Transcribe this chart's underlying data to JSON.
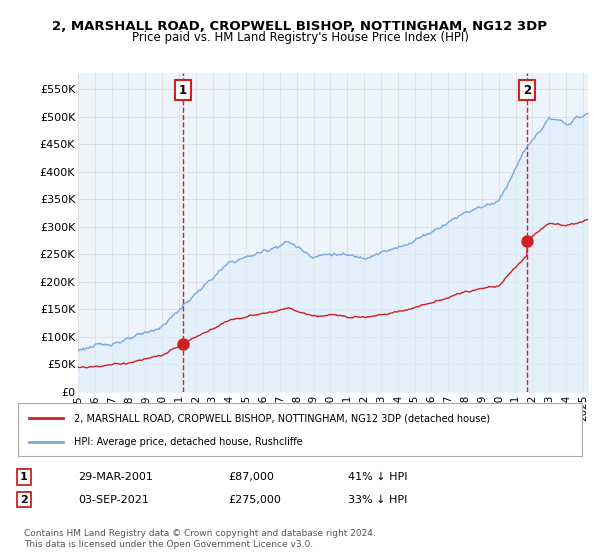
{
  "title": "2, MARSHALL ROAD, CROPWELL BISHOP, NOTTINGHAM, NG12 3DP",
  "subtitle": "Price paid vs. HM Land Registry's House Price Index (HPI)",
  "ylabel_ticks": [
    "£0",
    "£50K",
    "£100K",
    "£150K",
    "£200K",
    "£250K",
    "£300K",
    "£350K",
    "£400K",
    "£450K",
    "£500K",
    "£550K"
  ],
  "ytick_values": [
    0,
    50000,
    100000,
    150000,
    200000,
    250000,
    300000,
    350000,
    400000,
    450000,
    500000,
    550000
  ],
  "ylim": [
    0,
    580000
  ],
  "xlim_start": 1995.0,
  "xlim_end": 2025.3,
  "hpi_color": "#7aaadd",
  "price_color": "#cc2222",
  "sale1_date": 2001.24,
  "sale1_price": 87000,
  "sale2_date": 2021.67,
  "sale2_price": 275000,
  "legend_line1": "2, MARSHALL ROAD, CROPWELL BISHOP, NOTTINGHAM, NG12 3DP (detached house)",
  "legend_line2": "HPI: Average price, detached house, Rushcliffe",
  "annotation1_label": "1",
  "annotation1_date": "29-MAR-2001",
  "annotation1_price": "£87,000",
  "annotation1_hpi": "41% ↓ HPI",
  "annotation2_label": "2",
  "annotation2_date": "03-SEP-2021",
  "annotation2_price": "£275,000",
  "annotation2_hpi": "33% ↓ HPI",
  "footer": "Contains HM Land Registry data © Crown copyright and database right 2024.\nThis data is licensed under the Open Government Licence v3.0.",
  "bg_color": "#ffffff",
  "grid_color": "#dddddd",
  "hpi_fill_color": "#ddeeff"
}
